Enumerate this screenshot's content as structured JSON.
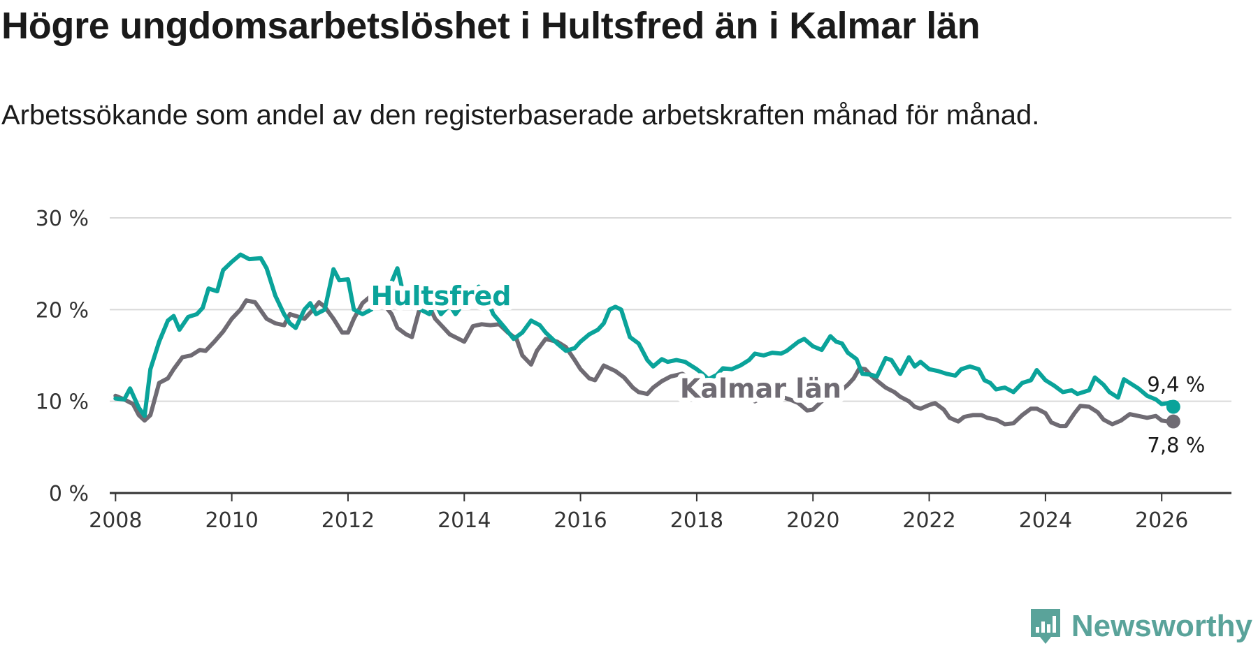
{
  "title": "Högre ungdomsarbetslöshet i Hultsfred än i Kalmar län",
  "subtitle": "Arbetssökande som andel av den registerbaserade arbetskraften månad för månad.",
  "brand": "Newsworthy",
  "colors": {
    "hultsfred": "#0aa39a",
    "kalmar": "#6f6b73",
    "grid": "#d9d9d9",
    "axis": "#333333",
    "brand": "#5aa39a"
  },
  "chart_data": {
    "type": "line",
    "title": "Högre ungdomsarbetslöshet i Hultsfred än i Kalmar län",
    "xlabel": "",
    "ylabel": "",
    "ylim": [
      0,
      30
    ],
    "xlim": [
      2007.9,
      2027.2
    ],
    "y_ticks": [
      0,
      10,
      20,
      30
    ],
    "y_tick_labels": [
      "0 %",
      "10 %",
      "20 %",
      "30 %"
    ],
    "x_ticks": [
      2008,
      2010,
      2012,
      2014,
      2016,
      2018,
      2020,
      2022,
      2024,
      2026
    ],
    "x_tick_labels": [
      "2008",
      "2010",
      "2012",
      "2014",
      "2016",
      "2018",
      "2020",
      "2022",
      "2024",
      "2026"
    ],
    "series": [
      {
        "name": "Hultsfred",
        "label": "Hultsfred",
        "label_pos": [
          2013.6,
          20.5
        ],
        "end_label": "9,4 %",
        "points": [
          [
            2008.0,
            10.3
          ],
          [
            2008.15,
            10.2
          ],
          [
            2008.25,
            11.4
          ],
          [
            2008.4,
            9.3
          ],
          [
            2008.5,
            8.4
          ],
          [
            2008.6,
            13.5
          ],
          [
            2008.75,
            16.5
          ],
          [
            2008.9,
            18.8
          ],
          [
            2009.0,
            19.3
          ],
          [
            2009.1,
            17.8
          ],
          [
            2009.25,
            19.2
          ],
          [
            2009.4,
            19.5
          ],
          [
            2009.5,
            20.2
          ],
          [
            2009.6,
            22.3
          ],
          [
            2009.75,
            22.0
          ],
          [
            2009.85,
            24.3
          ],
          [
            2010.0,
            25.2
          ],
          [
            2010.15,
            26.0
          ],
          [
            2010.3,
            25.5
          ],
          [
            2010.5,
            25.6
          ],
          [
            2010.6,
            24.5
          ],
          [
            2010.75,
            21.5
          ],
          [
            2010.9,
            19.5
          ],
          [
            2011.0,
            18.5
          ],
          [
            2011.1,
            18.0
          ],
          [
            2011.25,
            20.0
          ],
          [
            2011.35,
            20.7
          ],
          [
            2011.45,
            19.5
          ],
          [
            2011.6,
            20.0
          ],
          [
            2011.75,
            24.4
          ],
          [
            2011.85,
            23.2
          ],
          [
            2012.0,
            23.3
          ],
          [
            2012.1,
            20.0
          ],
          [
            2012.25,
            19.5
          ],
          [
            2012.4,
            20.0
          ],
          [
            2012.5,
            21.5
          ],
          [
            2012.6,
            22.5
          ],
          [
            2012.75,
            23.0
          ],
          [
            2012.85,
            24.5
          ],
          [
            2013.0,
            20.5
          ],
          [
            2013.1,
            21.5
          ],
          [
            2013.25,
            20.0
          ],
          [
            2013.4,
            19.5
          ],
          [
            2013.5,
            20.8
          ],
          [
            2013.6,
            19.5
          ],
          [
            2013.75,
            20.5
          ],
          [
            2013.85,
            19.5
          ],
          [
            2014.0,
            20.8
          ],
          [
            2014.1,
            21.5
          ],
          [
            2014.25,
            22.5
          ],
          [
            2014.4,
            21.0
          ],
          [
            2014.5,
            19.5
          ],
          [
            2014.7,
            18.0
          ],
          [
            2014.85,
            16.8
          ],
          [
            2015.0,
            17.5
          ],
          [
            2015.15,
            18.8
          ],
          [
            2015.3,
            18.3
          ],
          [
            2015.4,
            17.5
          ],
          [
            2015.6,
            16.3
          ],
          [
            2015.75,
            15.5
          ],
          [
            2015.9,
            15.8
          ],
          [
            2016.0,
            16.5
          ],
          [
            2016.15,
            17.3
          ],
          [
            2016.3,
            17.8
          ],
          [
            2016.4,
            18.5
          ],
          [
            2016.5,
            20.0
          ],
          [
            2016.6,
            20.3
          ],
          [
            2016.7,
            20.0
          ],
          [
            2016.85,
            17.0
          ],
          [
            2017.0,
            16.3
          ],
          [
            2017.15,
            14.5
          ],
          [
            2017.25,
            13.8
          ],
          [
            2017.4,
            14.6
          ],
          [
            2017.5,
            14.3
          ],
          [
            2017.65,
            14.5
          ],
          [
            2017.8,
            14.3
          ],
          [
            2017.9,
            13.9
          ],
          [
            2018.0,
            13.5
          ],
          [
            2018.1,
            13.0
          ],
          [
            2018.2,
            12.4
          ],
          [
            2018.35,
            12.9
          ],
          [
            2018.45,
            13.6
          ],
          [
            2018.6,
            13.5
          ],
          [
            2018.75,
            13.9
          ],
          [
            2018.9,
            14.5
          ],
          [
            2019.0,
            15.2
          ],
          [
            2019.15,
            15.0
          ],
          [
            2019.3,
            15.3
          ],
          [
            2019.45,
            15.2
          ],
          [
            2019.55,
            15.5
          ],
          [
            2019.75,
            16.5
          ],
          [
            2019.85,
            16.8
          ],
          [
            2020.0,
            16.0
          ],
          [
            2020.15,
            15.6
          ],
          [
            2020.3,
            17.1
          ],
          [
            2020.4,
            16.5
          ],
          [
            2020.5,
            16.3
          ],
          [
            2020.6,
            15.3
          ],
          [
            2020.75,
            14.6
          ],
          [
            2020.85,
            13.0
          ],
          [
            2021.0,
            12.9
          ],
          [
            2021.1,
            12.7
          ],
          [
            2021.25,
            14.7
          ],
          [
            2021.35,
            14.5
          ],
          [
            2021.5,
            13.0
          ],
          [
            2021.65,
            14.8
          ],
          [
            2021.75,
            13.8
          ],
          [
            2021.85,
            14.3
          ],
          [
            2022.0,
            13.5
          ],
          [
            2022.15,
            13.3
          ],
          [
            2022.3,
            13.0
          ],
          [
            2022.45,
            12.8
          ],
          [
            2022.55,
            13.5
          ],
          [
            2022.7,
            13.8
          ],
          [
            2022.85,
            13.5
          ],
          [
            2022.95,
            12.3
          ],
          [
            2023.05,
            12.0
          ],
          [
            2023.15,
            11.3
          ],
          [
            2023.3,
            11.5
          ],
          [
            2023.45,
            11.0
          ],
          [
            2023.6,
            12.0
          ],
          [
            2023.75,
            12.3
          ],
          [
            2023.85,
            13.4
          ],
          [
            2024.0,
            12.3
          ],
          [
            2024.15,
            11.7
          ],
          [
            2024.3,
            11.0
          ],
          [
            2024.45,
            11.2
          ],
          [
            2024.55,
            10.8
          ],
          [
            2024.75,
            11.2
          ],
          [
            2024.85,
            12.6
          ],
          [
            2025.0,
            11.8
          ],
          [
            2025.1,
            11.0
          ],
          [
            2025.25,
            10.4
          ],
          [
            2025.35,
            12.4
          ],
          [
            2025.5,
            11.8
          ],
          [
            2025.6,
            11.4
          ],
          [
            2025.75,
            10.6
          ],
          [
            2025.9,
            10.2
          ],
          [
            2026.0,
            9.7
          ],
          [
            2026.1,
            9.8
          ],
          [
            2026.15,
            9.9
          ],
          [
            2026.2,
            9.4
          ]
        ]
      },
      {
        "name": "Kalmar län",
        "label": "Kalmar län",
        "label_pos": [
          2019.1,
          10.4
        ],
        "end_label": "7,8 %",
        "points": [
          [
            2008.0,
            10.6
          ],
          [
            2008.15,
            10.2
          ],
          [
            2008.3,
            9.7
          ],
          [
            2008.4,
            8.5
          ],
          [
            2008.5,
            7.9
          ],
          [
            2008.6,
            8.5
          ],
          [
            2008.75,
            12.0
          ],
          [
            2008.9,
            12.5
          ],
          [
            2009.0,
            13.5
          ],
          [
            2009.15,
            14.8
          ],
          [
            2009.3,
            15.0
          ],
          [
            2009.45,
            15.6
          ],
          [
            2009.55,
            15.5
          ],
          [
            2009.7,
            16.5
          ],
          [
            2009.85,
            17.6
          ],
          [
            2010.0,
            19.0
          ],
          [
            2010.15,
            20.0
          ],
          [
            2010.25,
            21.0
          ],
          [
            2010.4,
            20.8
          ],
          [
            2010.6,
            19.0
          ],
          [
            2010.75,
            18.5
          ],
          [
            2010.9,
            18.3
          ],
          [
            2011.0,
            19.5
          ],
          [
            2011.15,
            19.2
          ],
          [
            2011.25,
            19.0
          ],
          [
            2011.4,
            20.0
          ],
          [
            2011.5,
            20.8
          ],
          [
            2011.6,
            20.3
          ],
          [
            2011.75,
            19.0
          ],
          [
            2011.9,
            17.5
          ],
          [
            2012.0,
            17.5
          ],
          [
            2012.1,
            19.0
          ],
          [
            2012.25,
            20.7
          ],
          [
            2012.4,
            21.5
          ],
          [
            2012.5,
            21.0
          ],
          [
            2012.6,
            20.7
          ],
          [
            2012.75,
            19.5
          ],
          [
            2012.85,
            18.0
          ],
          [
            2013.0,
            17.3
          ],
          [
            2013.1,
            17.0
          ],
          [
            2013.25,
            20.5
          ],
          [
            2013.4,
            20.3
          ],
          [
            2013.5,
            19.0
          ],
          [
            2013.75,
            17.3
          ],
          [
            2014.0,
            16.5
          ],
          [
            2014.15,
            18.2
          ],
          [
            2014.3,
            18.4
          ],
          [
            2014.45,
            18.3
          ],
          [
            2014.6,
            18.4
          ],
          [
            2014.75,
            17.5
          ],
          [
            2014.9,
            16.8
          ],
          [
            2015.0,
            15.0
          ],
          [
            2015.15,
            14.0
          ],
          [
            2015.25,
            15.5
          ],
          [
            2015.4,
            16.8
          ],
          [
            2015.6,
            16.5
          ],
          [
            2015.75,
            15.9
          ],
          [
            2015.9,
            14.5
          ],
          [
            2016.0,
            13.5
          ],
          [
            2016.15,
            12.5
          ],
          [
            2016.25,
            12.3
          ],
          [
            2016.4,
            13.9
          ],
          [
            2016.6,
            13.3
          ],
          [
            2016.75,
            12.6
          ],
          [
            2016.9,
            11.5
          ],
          [
            2017.0,
            11.0
          ],
          [
            2017.15,
            10.8
          ],
          [
            2017.25,
            11.5
          ],
          [
            2017.4,
            12.2
          ],
          [
            2017.55,
            12.7
          ],
          [
            2017.75,
            13.0
          ],
          [
            2017.9,
            12.5
          ],
          [
            2018.0,
            11.8
          ],
          [
            2018.2,
            11.3
          ],
          [
            2018.4,
            12.0
          ],
          [
            2018.6,
            12.0
          ],
          [
            2018.75,
            11.3
          ],
          [
            2018.85,
            10.7
          ],
          [
            2019.0,
            10.0
          ],
          [
            2019.15,
            10.5
          ],
          [
            2019.3,
            11.0
          ],
          [
            2019.45,
            10.5
          ],
          [
            2019.6,
            10.2
          ],
          [
            2019.75,
            9.8
          ],
          [
            2019.9,
            9.0
          ],
          [
            2020.0,
            9.1
          ],
          [
            2020.15,
            10.0
          ],
          [
            2020.3,
            10.5
          ],
          [
            2020.45,
            11.0
          ],
          [
            2020.6,
            11.8
          ],
          [
            2020.7,
            12.5
          ],
          [
            2020.8,
            13.6
          ],
          [
            2020.9,
            13.5
          ],
          [
            2021.0,
            12.8
          ],
          [
            2021.15,
            12.0
          ],
          [
            2021.25,
            11.5
          ],
          [
            2021.4,
            11.0
          ],
          [
            2021.5,
            10.5
          ],
          [
            2021.65,
            10.0
          ],
          [
            2021.75,
            9.4
          ],
          [
            2021.85,
            9.2
          ],
          [
            2022.0,
            9.6
          ],
          [
            2022.1,
            9.8
          ],
          [
            2022.25,
            9.1
          ],
          [
            2022.35,
            8.2
          ],
          [
            2022.5,
            7.8
          ],
          [
            2022.6,
            8.3
          ],
          [
            2022.75,
            8.5
          ],
          [
            2022.9,
            8.5
          ],
          [
            2023.0,
            8.2
          ],
          [
            2023.15,
            8.0
          ],
          [
            2023.3,
            7.5
          ],
          [
            2023.45,
            7.6
          ],
          [
            2023.6,
            8.5
          ],
          [
            2023.75,
            9.2
          ],
          [
            2023.85,
            9.2
          ],
          [
            2024.0,
            8.7
          ],
          [
            2024.1,
            7.7
          ],
          [
            2024.25,
            7.3
          ],
          [
            2024.35,
            7.3
          ],
          [
            2024.5,
            8.7
          ],
          [
            2024.6,
            9.5
          ],
          [
            2024.75,
            9.4
          ],
          [
            2024.9,
            8.8
          ],
          [
            2025.0,
            8.0
          ],
          [
            2025.15,
            7.5
          ],
          [
            2025.3,
            7.9
          ],
          [
            2025.45,
            8.6
          ],
          [
            2025.6,
            8.4
          ],
          [
            2025.75,
            8.2
          ],
          [
            2025.9,
            8.4
          ],
          [
            2026.0,
            7.9
          ],
          [
            2026.1,
            7.8
          ],
          [
            2026.2,
            7.8
          ]
        ]
      }
    ]
  }
}
